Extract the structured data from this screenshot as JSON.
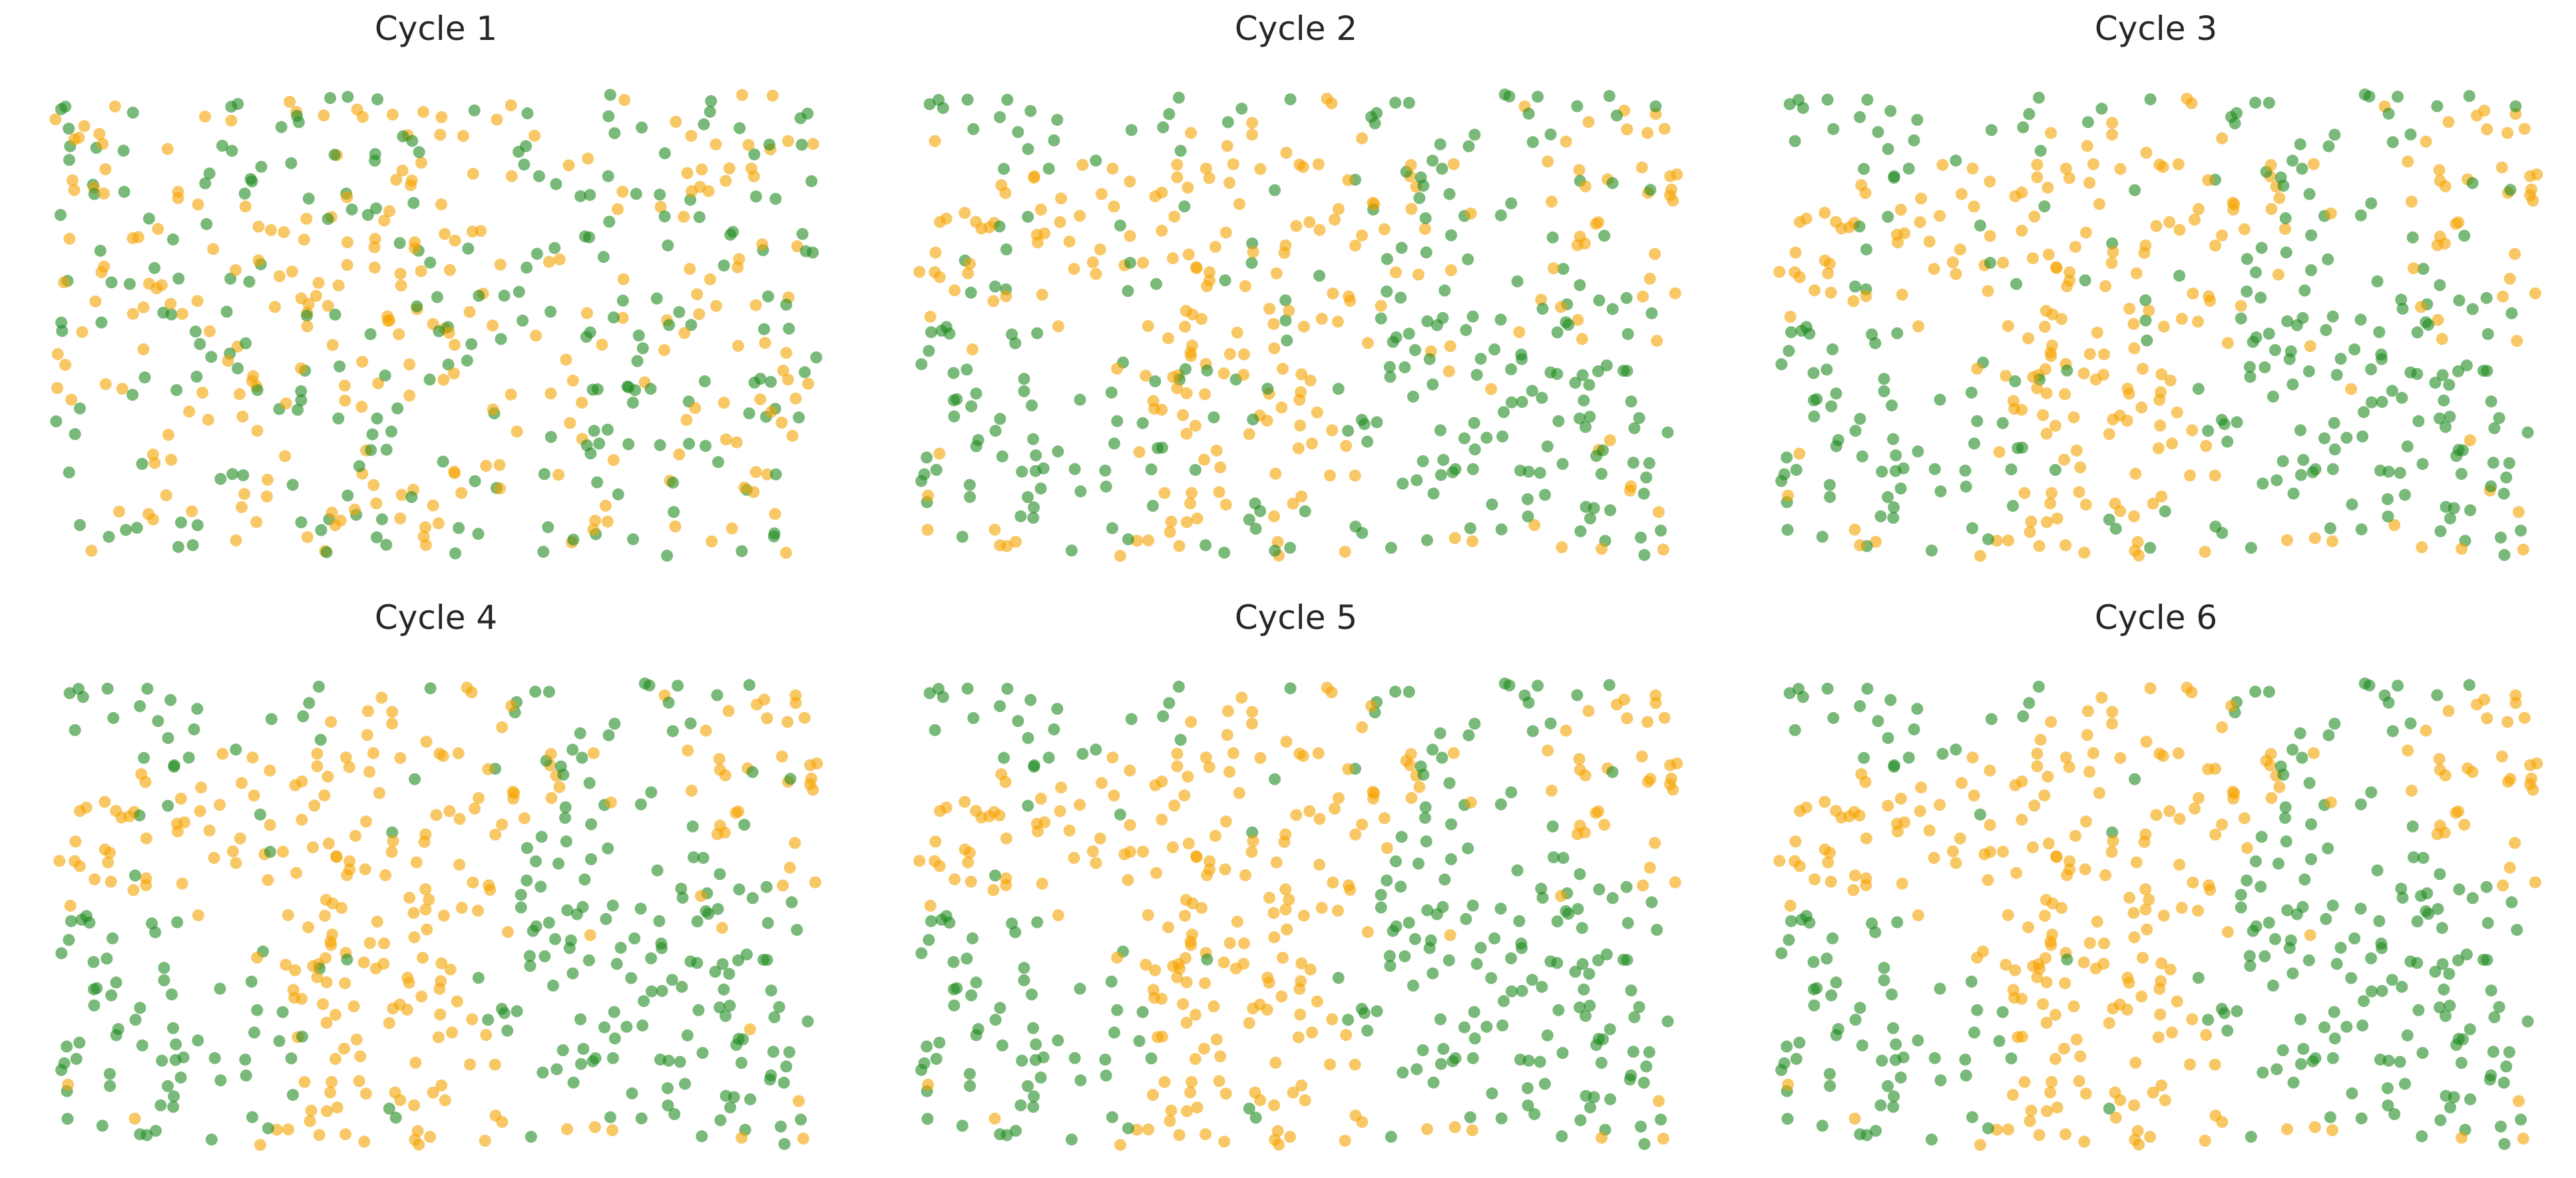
{
  "figure": {
    "background": "#ffffff"
  },
  "chart_data": [
    {
      "type": "scatter",
      "title": "Cycle 1",
      "xlabel": "",
      "ylabel": "",
      "grid": false,
      "axes_visible": false,
      "xlim": [
        0,
        1
      ],
      "ylim": [
        0,
        1
      ],
      "colors": {
        "Hawk": "#f5a300",
        "Dove": "#1f8a1f"
      },
      "point_opacity": 0.6,
      "seed": 1,
      "n_points": 520,
      "green_fraction": 0.45,
      "clustering": 0.05
    },
    {
      "type": "scatter",
      "title": "Cycle 2",
      "xlabel": "",
      "ylabel": "",
      "grid": false,
      "axes_visible": false,
      "xlim": [
        0,
        1
      ],
      "ylim": [
        0,
        1
      ],
      "colors": {
        "Hawk": "#f5a300",
        "Dove": "#1f8a1f"
      },
      "point_opacity": 0.6,
      "seed": 2,
      "n_points": 520,
      "green_fraction": 0.5,
      "clustering": 0.6
    },
    {
      "type": "scatter",
      "title": "Cycle 3",
      "xlabel": "",
      "ylabel": "",
      "grid": false,
      "axes_visible": false,
      "xlim": [
        0,
        1
      ],
      "ylim": [
        0,
        1
      ],
      "colors": {
        "Hawk": "#f5a300",
        "Dove": "#1f8a1f"
      },
      "point_opacity": 0.6,
      "seed": 2,
      "n_points": 520,
      "green_fraction": 0.5,
      "clustering": 0.75
    },
    {
      "type": "scatter",
      "title": "Cycle 4",
      "xlabel": "",
      "ylabel": "",
      "grid": false,
      "axes_visible": false,
      "xlim": [
        0,
        1
      ],
      "ylim": [
        0,
        1
      ],
      "colors": {
        "Hawk": "#f5a300",
        "Dove": "#1f8a1f"
      },
      "point_opacity": 0.6,
      "seed": 2,
      "n_points": 520,
      "green_fraction": 0.5,
      "clustering": 0.85
    },
    {
      "type": "scatter",
      "title": "Cycle 5",
      "xlabel": "",
      "ylabel": "",
      "grid": false,
      "axes_visible": false,
      "xlim": [
        0,
        1
      ],
      "ylim": [
        0,
        1
      ],
      "colors": {
        "Hawk": "#f5a300",
        "Dove": "#1f8a1f"
      },
      "point_opacity": 0.6,
      "seed": 2,
      "n_points": 520,
      "green_fraction": 0.5,
      "clustering": 0.9
    },
    {
      "type": "scatter",
      "title": "Cycle 6",
      "xlabel": "",
      "ylabel": "",
      "grid": false,
      "axes_visible": false,
      "xlim": [
        0,
        1
      ],
      "ylim": [
        0,
        1
      ],
      "colors": {
        "Hawk": "#f5a300",
        "Dove": "#1f8a1f"
      },
      "point_opacity": 0.6,
      "seed": 2,
      "n_points": 520,
      "green_fraction": 0.5,
      "clustering": 0.95
    }
  ]
}
